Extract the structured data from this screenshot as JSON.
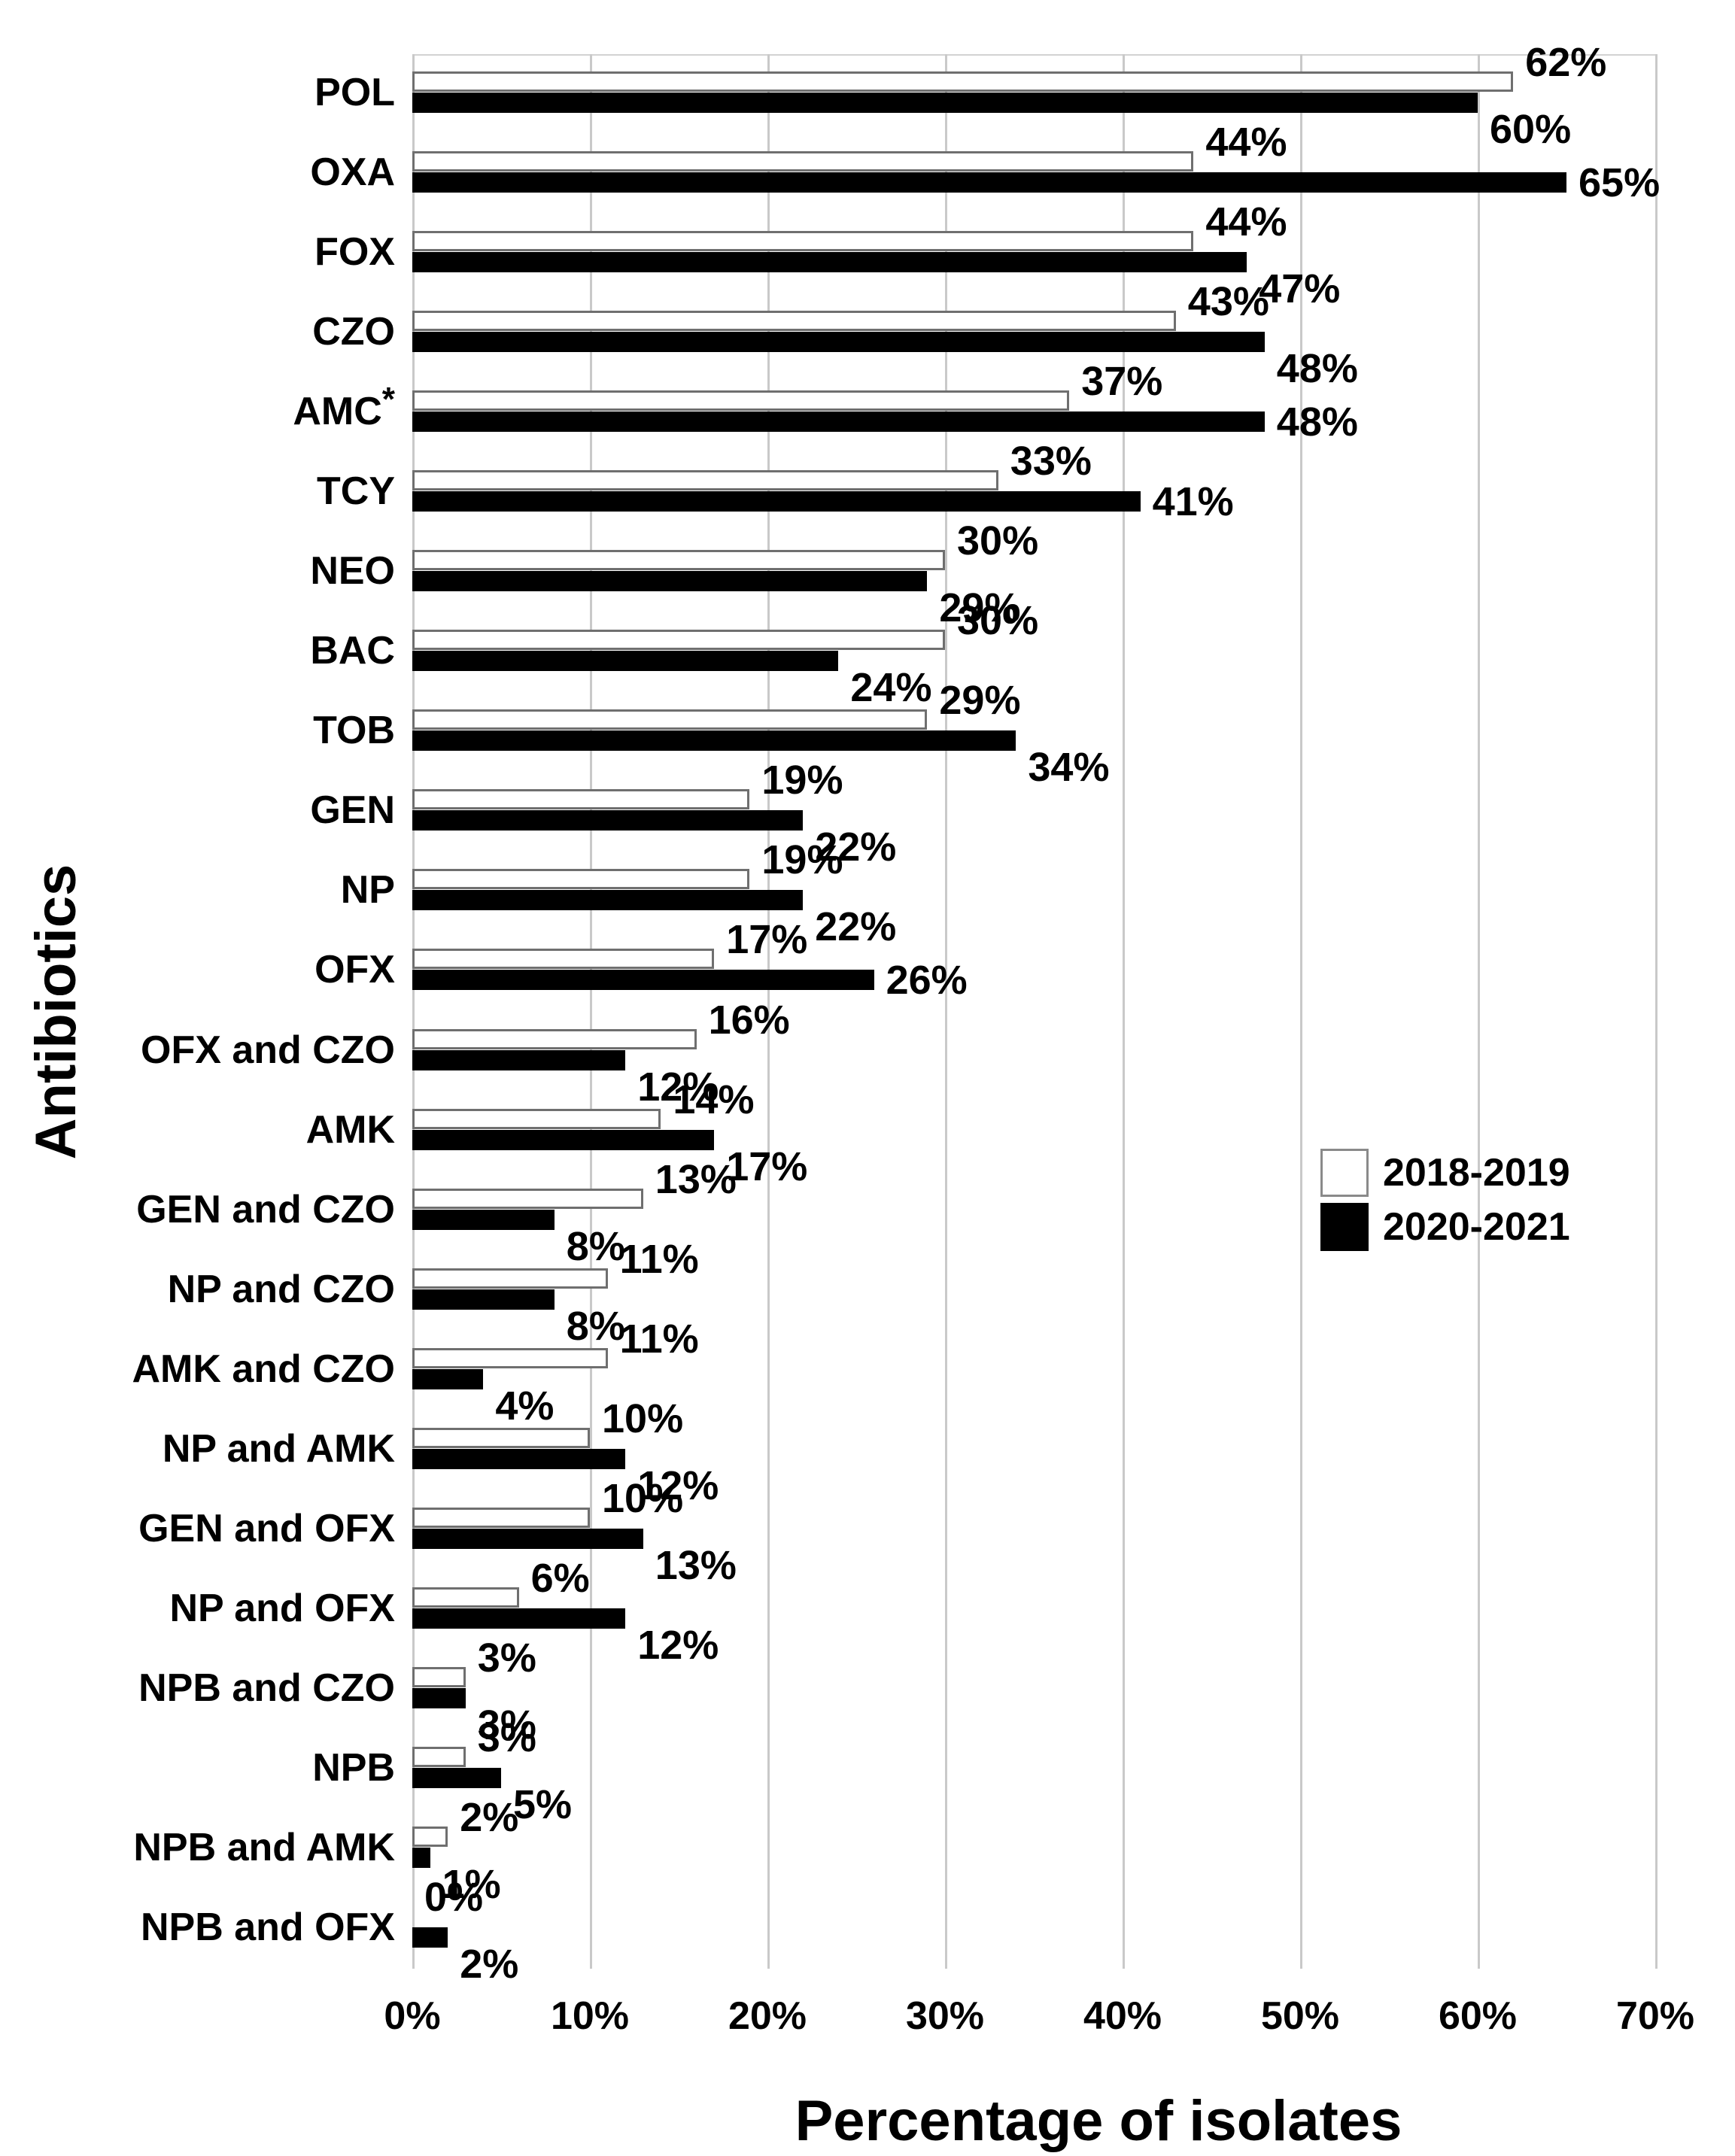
{
  "chart_data": {
    "type": "bar",
    "orientation": "horizontal",
    "xlabel": "Percentage of isolates",
    "ylabel": "Antibiotics",
    "xlim": [
      0,
      70
    ],
    "x_ticks": [
      "0%",
      "10%",
      "20%",
      "30%",
      "40%",
      "50%",
      "60%",
      "70%"
    ],
    "grid": "vertical",
    "legend_position": "middle-right",
    "value_suffix": "%",
    "categories": [
      "POL",
      "OXA",
      "FOX",
      "CZO",
      "AMC*",
      "TCY",
      "NEO",
      "BAC",
      "TOB",
      "GEN",
      "NP",
      "OFX",
      "OFX and CZO",
      "AMK",
      "GEN and CZO",
      "NP and CZO",
      "AMK and CZO",
      "NP and AMK",
      "GEN and OFX",
      "NP and OFX",
      "NPB and CZO",
      "NPB",
      "NPB and AMK",
      "NPB and OFX"
    ],
    "series": [
      {
        "name": "2018-2019",
        "fill": "#ffffff",
        "values": [
          62,
          44,
          44,
          43,
          37,
          33,
          30,
          30,
          29,
          19,
          19,
          17,
          16,
          14,
          13,
          11,
          11,
          10,
          10,
          6,
          3,
          3,
          2,
          0
        ]
      },
      {
        "name": "2020-2021",
        "fill": "#000000",
        "values": [
          60,
          65,
          47,
          48,
          48,
          41,
          29,
          24,
          34,
          22,
          22,
          26,
          12,
          17,
          8,
          8,
          4,
          12,
          13,
          12,
          3,
          5,
          1,
          2
        ]
      }
    ]
  },
  "legend": {
    "items": [
      {
        "label": "2018-2019",
        "swatch": "white"
      },
      {
        "label": "2020-2021",
        "swatch": "black"
      }
    ]
  },
  "colors": {
    "background": "#ffffff",
    "grid": "#c9c9c9",
    "bar_outline": "#6f6f6f",
    "series_2018_fill": "#ffffff",
    "series_2020_fill": "#000000",
    "text": "#000000"
  }
}
